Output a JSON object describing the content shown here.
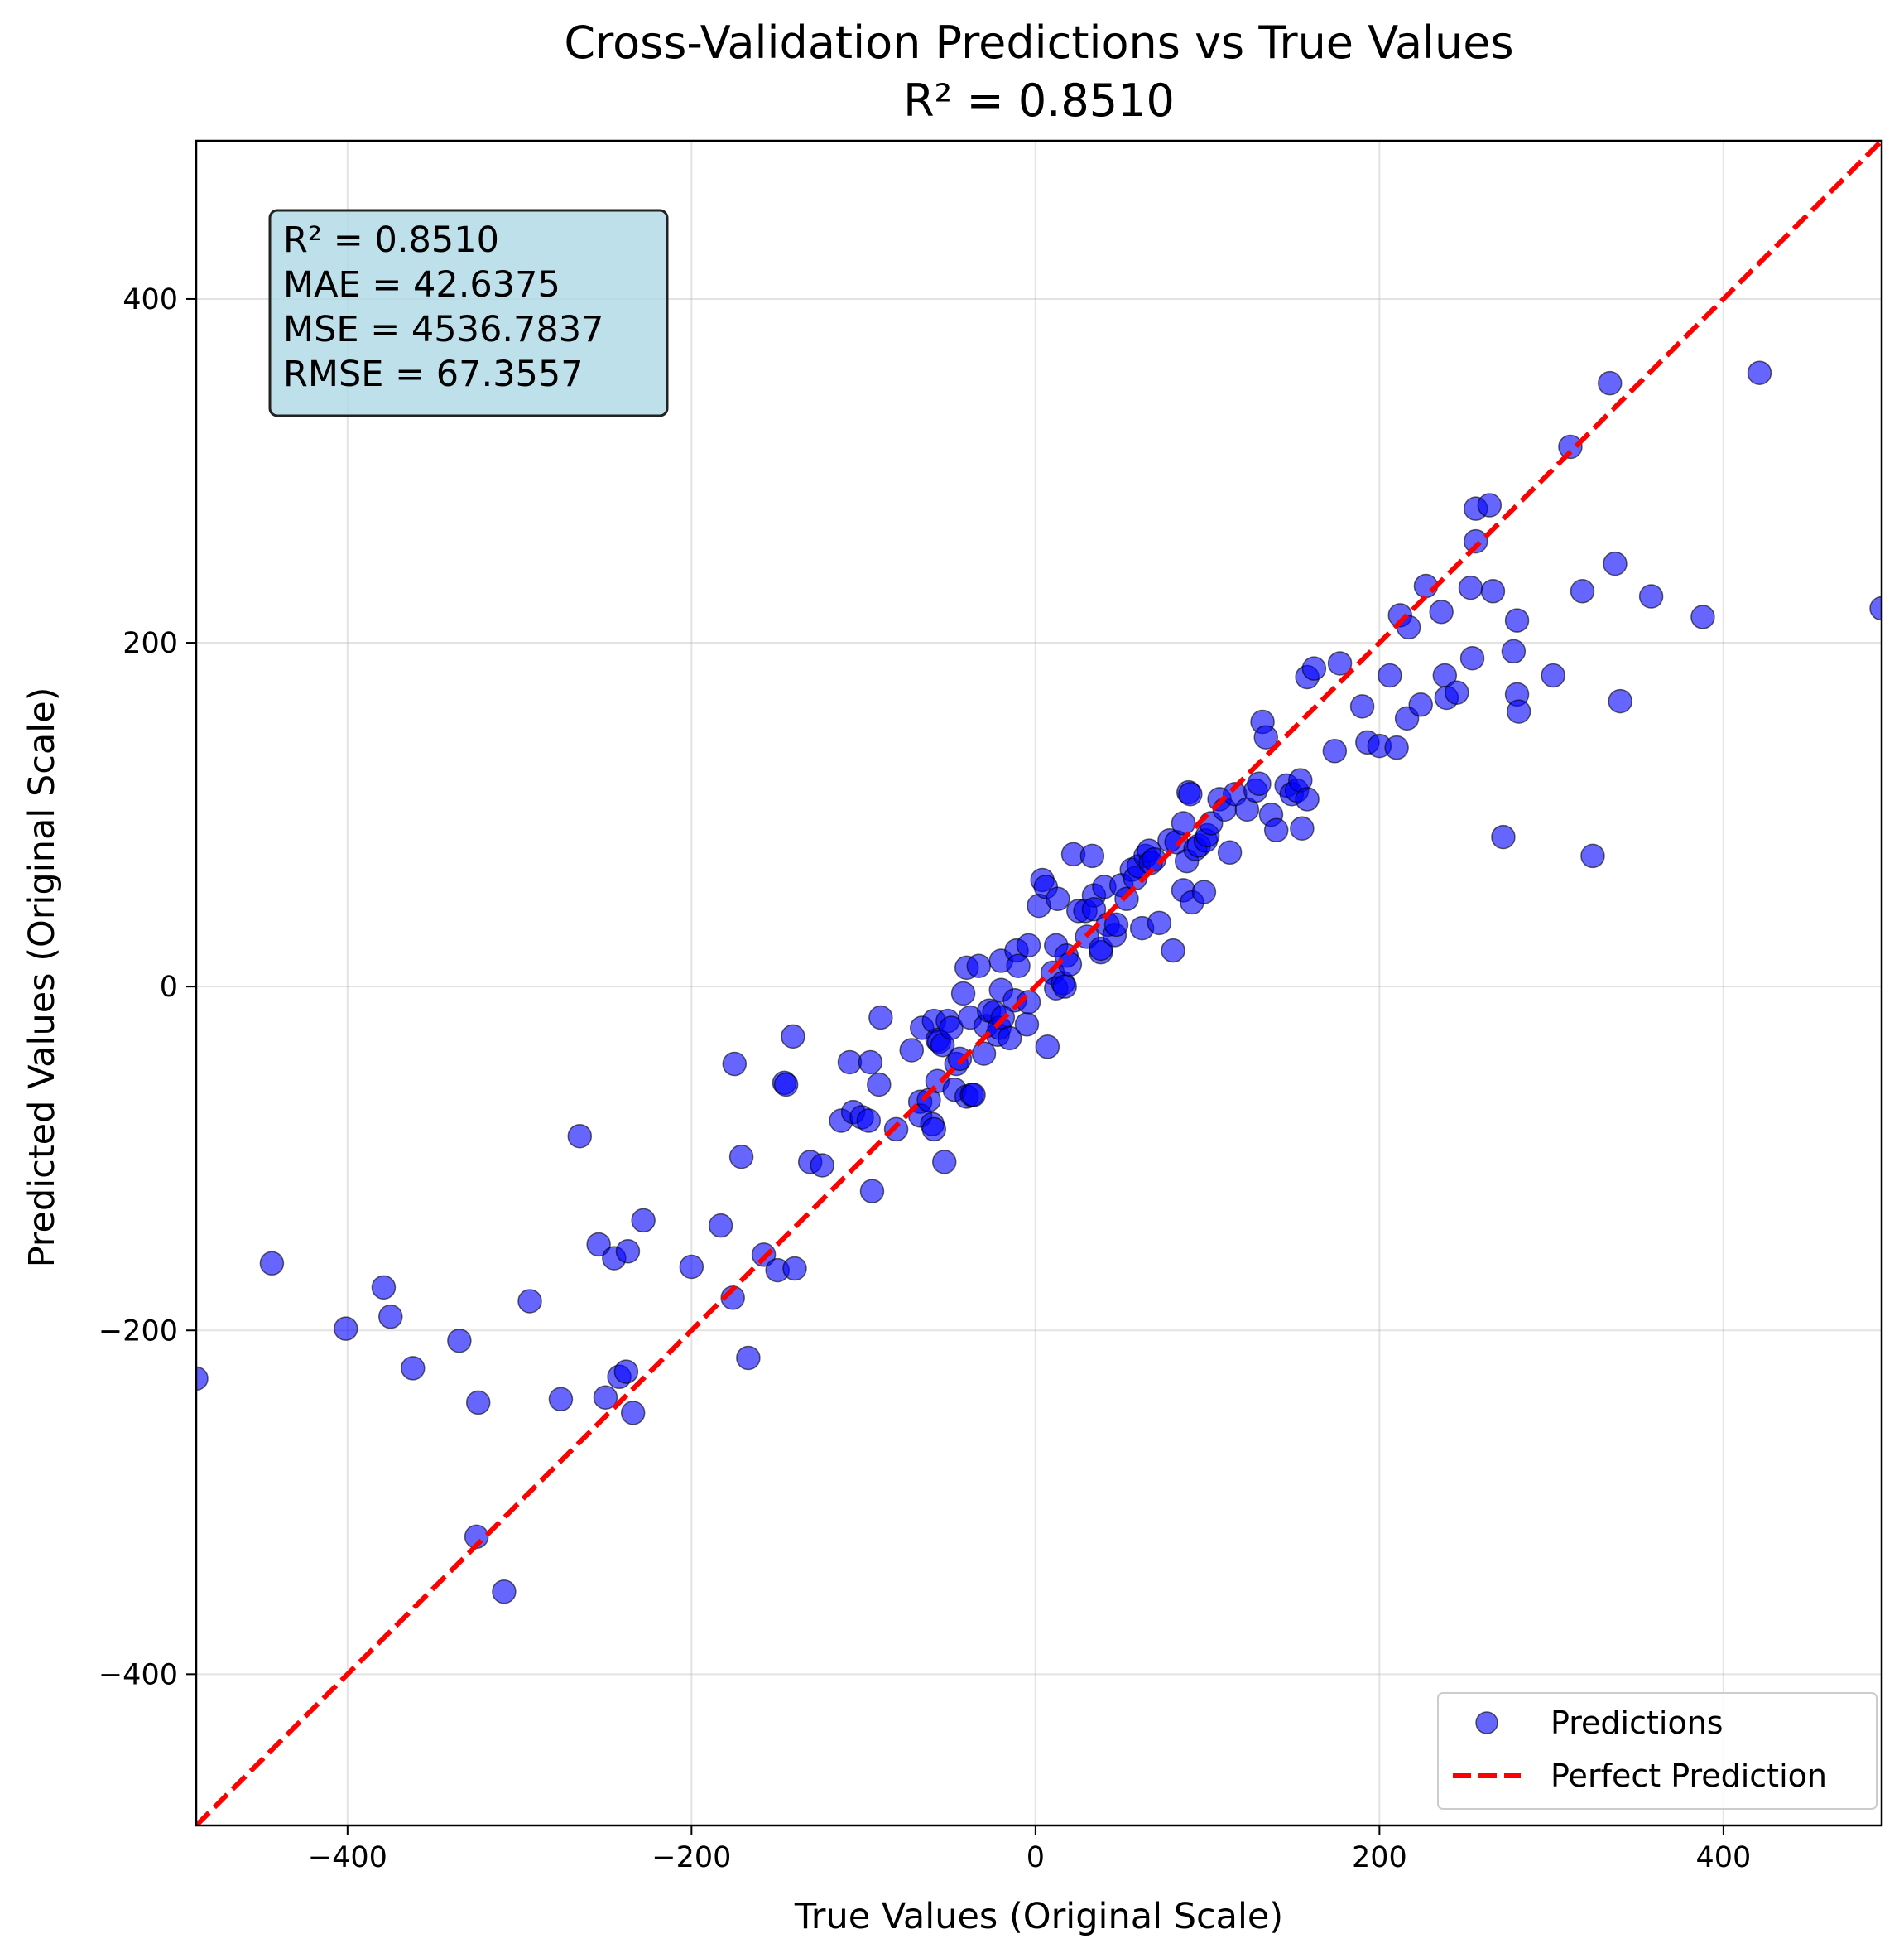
{
  "chart_data": {
    "type": "scatter",
    "title": "Cross-Validation Predictions vs True Values",
    "subtitle": "R² = 0.8510",
    "xlabel": "True Values (Original Scale)",
    "ylabel": "Predicted Values (Original Scale)",
    "xlim": [
      -488,
      492
    ],
    "ylim": [
      -488,
      492
    ],
    "xticks": [
      -400,
      -200,
      0,
      200,
      400
    ],
    "yticks": [
      -400,
      -200,
      0,
      200,
      400
    ],
    "xtick_labels": [
      "−400",
      "−200",
      "0",
      "200",
      "400"
    ],
    "ytick_labels": [
      "−400",
      "−200",
      "0",
      "200",
      "400"
    ],
    "grid": true,
    "legend_placement": "lower-right",
    "stats_box": {
      "placement": "top-left",
      "lines": [
        "R² = 0.8510",
        "MAE = 42.6375",
        "MSE = 4536.7837",
        "RMSE = 67.3557"
      ]
    },
    "series": [
      {
        "name": "Predictions",
        "type": "scatter",
        "color": "#0000ff",
        "edge_color": "#000000",
        "opacity": 0.6,
        "points": [
          [
            -488,
            -228
          ],
          [
            -444,
            -161
          ],
          [
            -401,
            -199
          ],
          [
            -379,
            -175
          ],
          [
            -375,
            -192
          ],
          [
            -362,
            -222
          ],
          [
            -335,
            -206
          ],
          [
            -324,
            -242
          ],
          [
            -325,
            -320
          ],
          [
            -309,
            -352
          ],
          [
            -294,
            -183
          ],
          [
            -276,
            -240
          ],
          [
            -265,
            -87
          ],
          [
            -254,
            -150
          ],
          [
            -250,
            -239
          ],
          [
            -245,
            -158
          ],
          [
            -242,
            -227
          ],
          [
            -238,
            -224
          ],
          [
            -237,
            -154
          ],
          [
            -234,
            -248
          ],
          [
            -228,
            -136
          ],
          [
            -200,
            -163
          ],
          [
            -183,
            -139
          ],
          [
            -176,
            -181
          ],
          [
            -175,
            -45
          ],
          [
            -171,
            -99
          ],
          [
            -167,
            -216
          ],
          [
            -158,
            -156
          ],
          [
            -150,
            -165
          ],
          [
            -146,
            -56
          ],
          [
            -145,
            -57
          ],
          [
            -141,
            -29
          ],
          [
            -140,
            -164
          ],
          [
            -131,
            -102
          ],
          [
            -124,
            -104
          ],
          [
            -113,
            -78
          ],
          [
            -108,
            -44
          ],
          [
            -106,
            -73
          ],
          [
            -101,
            -76
          ],
          [
            -97,
            -78
          ],
          [
            -96,
            -44
          ],
          [
            -95,
            -119
          ],
          [
            -91,
            -57
          ],
          [
            -90,
            -18
          ],
          [
            -81,
            -83
          ],
          [
            -72,
            -37
          ],
          [
            -67,
            -67
          ],
          [
            -67,
            -75
          ],
          [
            -66,
            -24
          ],
          [
            -62,
            -66
          ],
          [
            -60,
            -80
          ],
          [
            -59,
            -83
          ],
          [
            -59,
            -20
          ],
          [
            -57,
            -55
          ],
          [
            -57,
            -31
          ],
          [
            -56,
            -32
          ],
          [
            -54,
            -34
          ],
          [
            -53,
            -102
          ],
          [
            -51,
            -20
          ],
          [
            -49,
            -24
          ],
          [
            -47,
            -60
          ],
          [
            -46,
            -45
          ],
          [
            -44,
            -42
          ],
          [
            -42,
            -4
          ],
          [
            -40,
            -64
          ],
          [
            -40,
            11
          ],
          [
            -38,
            -18
          ],
          [
            -37,
            -63
          ],
          [
            -36,
            -63
          ],
          [
            -33,
            12
          ],
          [
            -30,
            -39
          ],
          [
            -29,
            -23
          ],
          [
            -27,
            -14
          ],
          [
            -24,
            -15
          ],
          [
            -22,
            -28
          ],
          [
            -21,
            -24
          ],
          [
            -20,
            -2
          ],
          [
            -20,
            15
          ],
          [
            -19,
            -18
          ],
          [
            -15,
            -30
          ],
          [
            -12,
            -8
          ],
          [
            -11,
            21
          ],
          [
            -10,
            12
          ],
          [
            -5,
            -22
          ],
          [
            -4,
            24
          ],
          [
            -4,
            -9
          ],
          [
            2,
            47
          ],
          [
            4,
            62
          ],
          [
            6,
            58
          ],
          [
            7,
            -35
          ],
          [
            10,
            8
          ],
          [
            12,
            -1
          ],
          [
            12,
            24
          ],
          [
            13,
            51
          ],
          [
            16,
            2
          ],
          [
            17,
            0
          ],
          [
            18,
            18
          ],
          [
            20,
            13
          ],
          [
            22,
            77
          ],
          [
            25,
            44
          ],
          [
            29,
            44
          ],
          [
            30,
            29
          ],
          [
            33,
            76
          ],
          [
            34,
            53
          ],
          [
            34,
            45
          ],
          [
            38,
            20
          ],
          [
            38,
            22
          ],
          [
            40,
            58
          ],
          [
            42,
            36
          ],
          [
            46,
            30
          ],
          [
            47,
            36
          ],
          [
            50,
            59
          ],
          [
            53,
            51
          ],
          [
            56,
            68
          ],
          [
            58,
            63
          ],
          [
            60,
            70
          ],
          [
            62,
            34
          ],
          [
            64,
            76
          ],
          [
            66,
            79
          ],
          [
            67,
            72
          ],
          [
            69,
            74
          ],
          [
            72,
            37
          ],
          [
            78,
            85
          ],
          [
            80,
            21
          ],
          [
            82,
            84
          ],
          [
            86,
            95
          ],
          [
            86,
            56
          ],
          [
            88,
            73
          ],
          [
            89,
            113
          ],
          [
            90,
            112
          ],
          [
            91,
            49
          ],
          [
            93,
            80
          ],
          [
            95,
            82
          ],
          [
            98,
            55
          ],
          [
            99,
            85
          ],
          [
            100,
            88
          ],
          [
            102,
            95
          ],
          [
            107,
            109
          ],
          [
            110,
            103
          ],
          [
            113,
            78
          ],
          [
            116,
            112
          ],
          [
            123,
            103
          ],
          [
            128,
            114
          ],
          [
            130,
            118
          ],
          [
            132,
            154
          ],
          [
            134,
            145
          ],
          [
            137,
            100
          ],
          [
            140,
            91
          ],
          [
            146,
            117
          ],
          [
            149,
            112
          ],
          [
            152,
            114
          ],
          [
            154,
            120
          ],
          [
            155,
            92
          ],
          [
            158,
            109
          ],
          [
            158,
            180
          ],
          [
            162,
            185
          ],
          [
            174,
            137
          ],
          [
            177,
            188
          ],
          [
            190,
            163
          ],
          [
            193,
            142
          ],
          [
            200,
            140
          ],
          [
            206,
            181
          ],
          [
            210,
            139
          ],
          [
            212,
            216
          ],
          [
            216,
            156
          ],
          [
            217,
            209
          ],
          [
            224,
            164
          ],
          [
            227,
            233
          ],
          [
            236,
            218
          ],
          [
            238,
            181
          ],
          [
            239,
            168
          ],
          [
            245,
            171
          ],
          [
            253,
            232
          ],
          [
            254,
            191
          ],
          [
            256,
            278
          ],
          [
            256,
            259
          ],
          [
            264,
            280
          ],
          [
            266,
            230
          ],
          [
            272,
            87
          ],
          [
            278,
            195
          ],
          [
            280,
            213
          ],
          [
            280,
            170
          ],
          [
            281,
            160
          ],
          [
            301,
            181
          ],
          [
            311,
            314
          ],
          [
            318,
            230
          ],
          [
            324,
            76
          ],
          [
            334,
            351
          ],
          [
            337,
            246
          ],
          [
            340,
            166
          ],
          [
            358,
            227
          ],
          [
            388,
            215
          ],
          [
            421,
            357
          ],
          [
            492,
            220
          ]
        ]
      },
      {
        "name": "Perfect Prediction",
        "type": "line",
        "color": "#ff0000",
        "dash": "dashed",
        "points": [
          [
            -488,
            -488
          ],
          [
            492,
            492
          ]
        ]
      }
    ]
  }
}
